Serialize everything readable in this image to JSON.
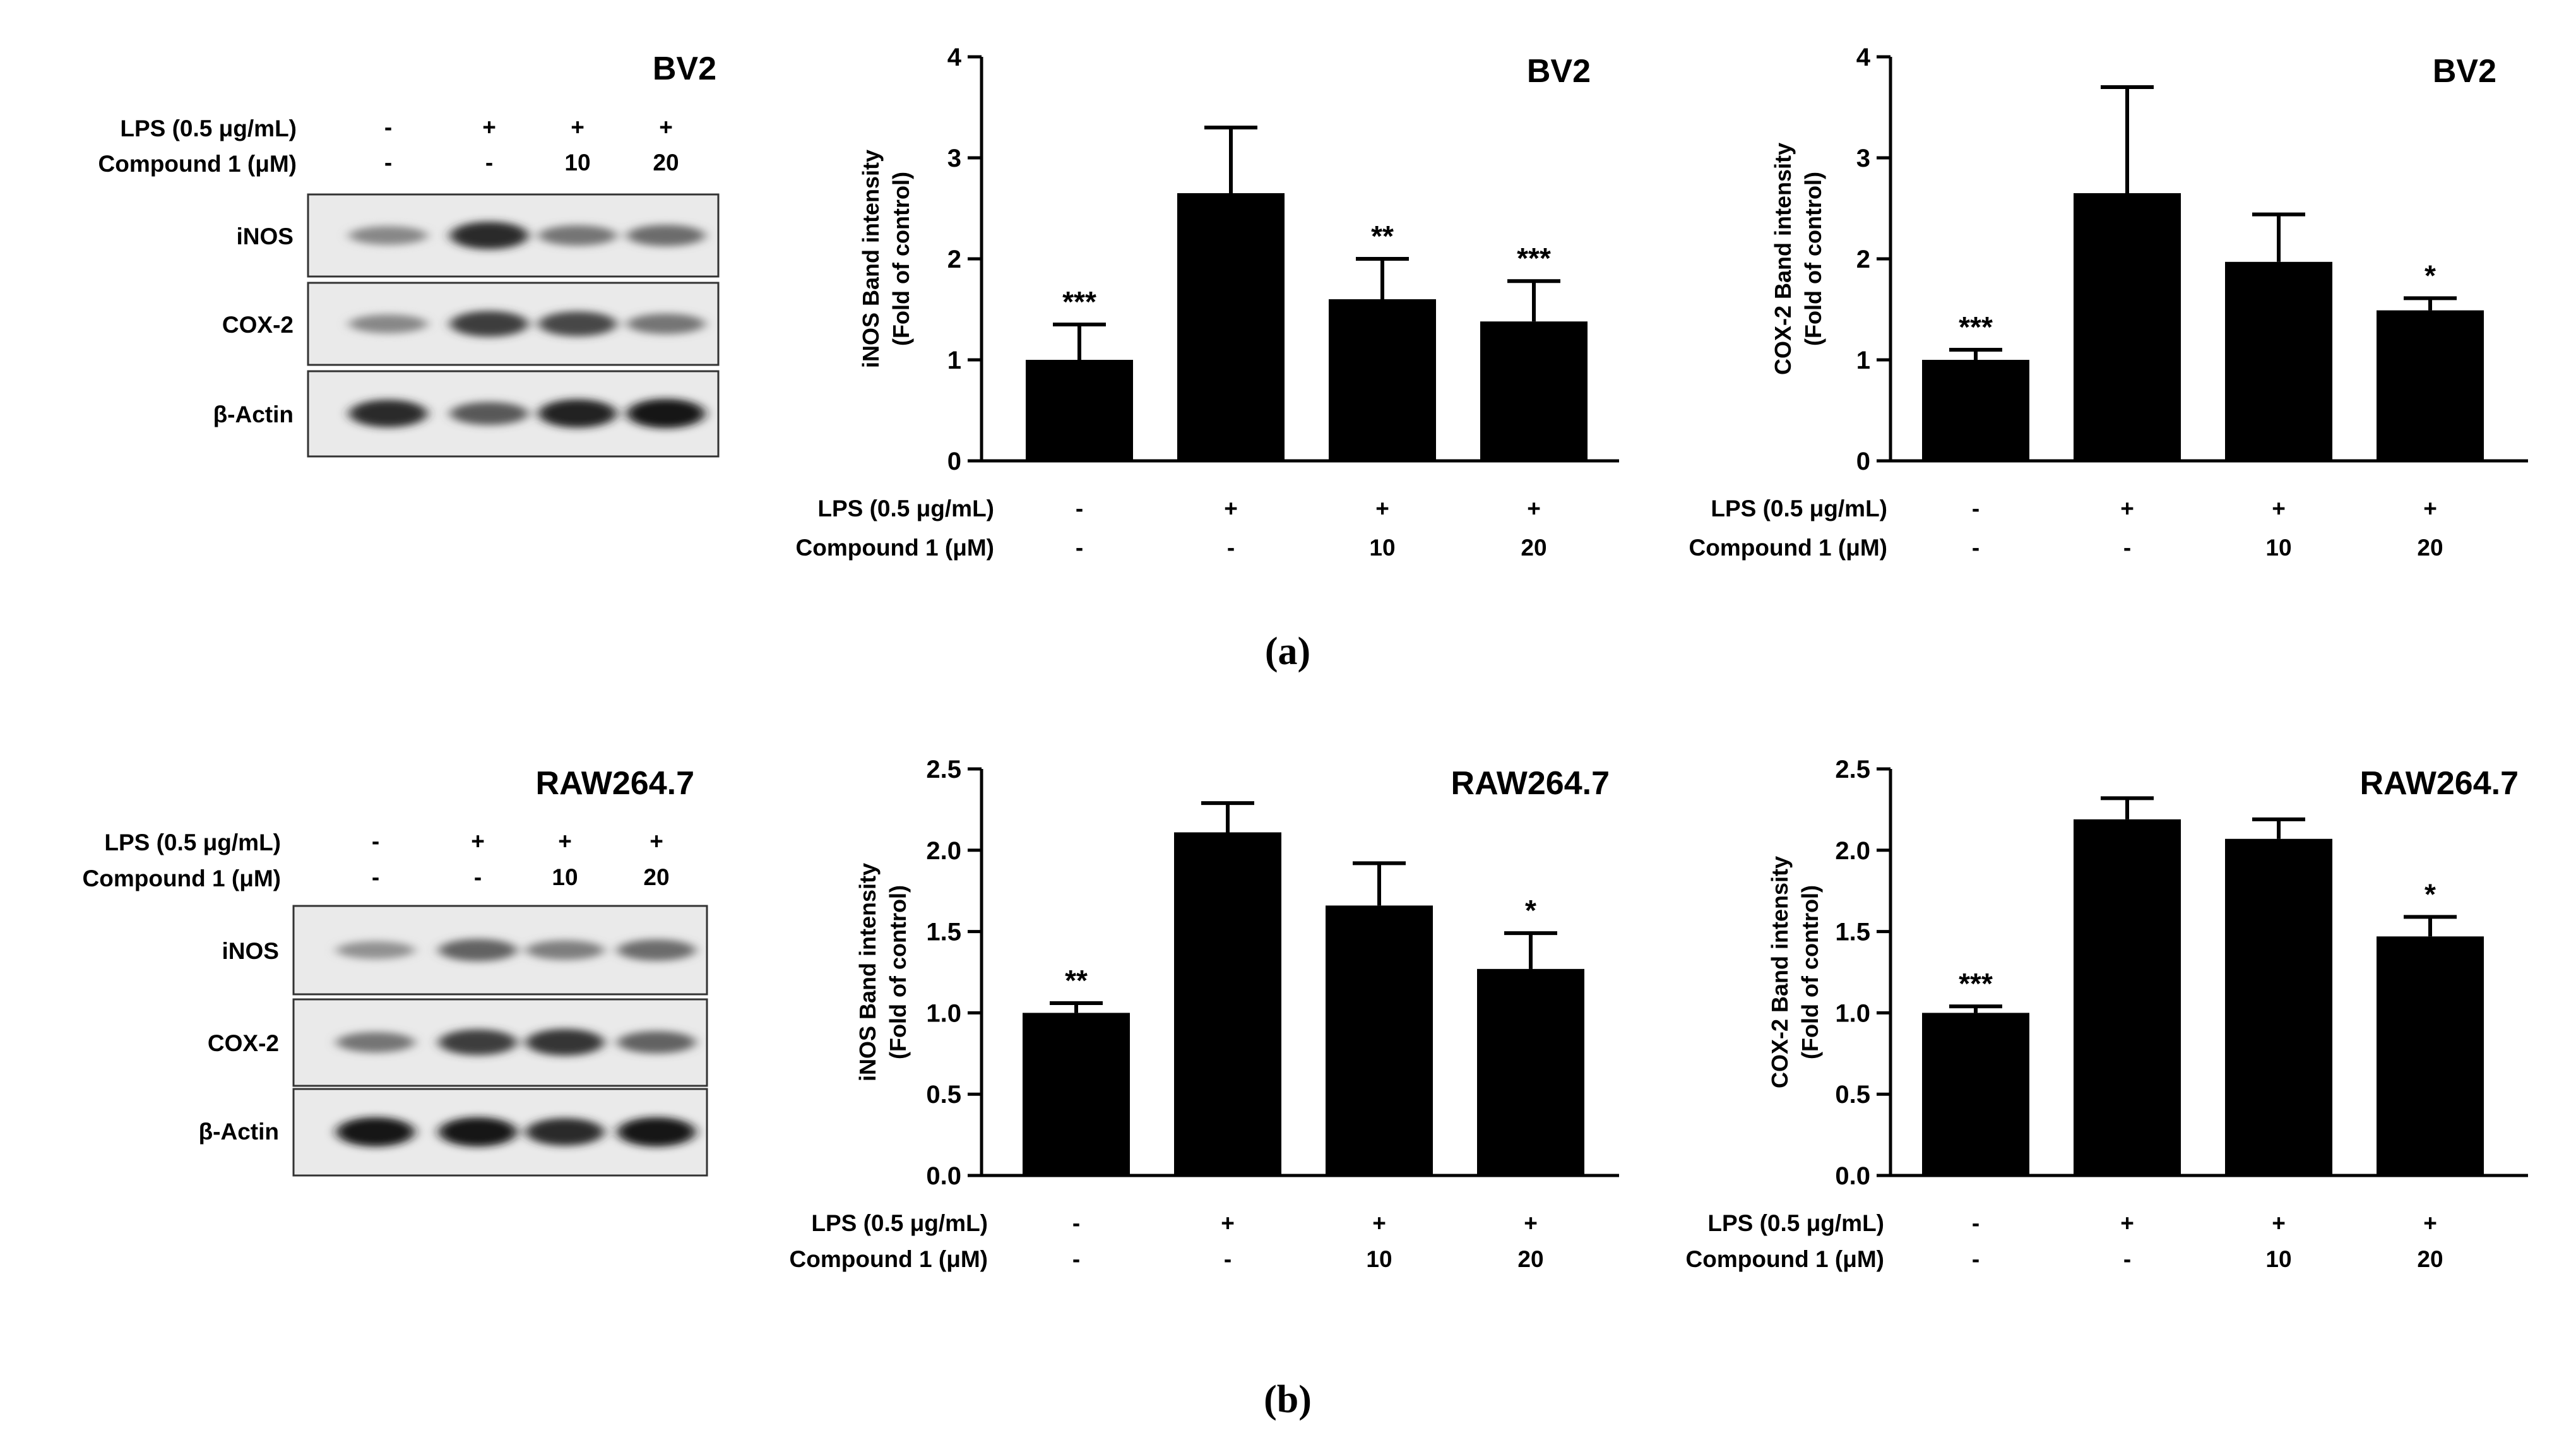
{
  "panels": [
    {
      "caption": "(a)",
      "cell_line": "BV2",
      "blot": {
        "title": "BV2",
        "row_labels": [
          "LPS (0.5 μg/mL)",
          "Compound 1 (μM)"
        ],
        "lanes": [
          {
            "lps": "-",
            "compound": "-"
          },
          {
            "lps": "+",
            "compound": "-"
          },
          {
            "lps": "+",
            "compound": "10"
          },
          {
            "lps": "+",
            "compound": "20"
          }
        ],
        "bands": [
          {
            "label": "iNOS",
            "intensity": [
              0.35,
              0.85,
              0.45,
              0.5
            ]
          },
          {
            "label": "COX-2",
            "intensity": [
              0.35,
              0.75,
              0.7,
              0.45
            ]
          },
          {
            "label": "β-Actin",
            "intensity": [
              0.85,
              0.6,
              0.9,
              0.95
            ]
          }
        ]
      }
    },
    {
      "caption": "(b)",
      "cell_line": "RAW264.7",
      "blot": {
        "title": "RAW264.7",
        "row_labels": [
          "LPS (0.5 μg/mL)",
          "Compound 1 (μM)"
        ],
        "lanes": [
          {
            "lps": "-",
            "compound": "-"
          },
          {
            "lps": "+",
            "compound": "-"
          },
          {
            "lps": "+",
            "compound": "10"
          },
          {
            "lps": "+",
            "compound": "20"
          }
        ],
        "bands": [
          {
            "label": "iNOS",
            "intensity": [
              0.3,
              0.55,
              0.4,
              0.5
            ]
          },
          {
            "label": "COX-2",
            "intensity": [
              0.45,
              0.75,
              0.8,
              0.55
            ]
          },
          {
            "label": "β-Actin",
            "intensity": [
              0.95,
              0.95,
              0.85,
              0.95
            ]
          }
        ]
      }
    }
  ],
  "chart_data": [
    {
      "type": "bar",
      "title": "BV2",
      "ylabel": [
        "iNOS Band intensity",
        "(Fold of control)"
      ],
      "ylim": [
        0,
        4
      ],
      "yticks": [
        0,
        1,
        2,
        3,
        4
      ],
      "ytick_labels": [
        "0",
        "1",
        "2",
        "3",
        "4"
      ],
      "values": [
        1.0,
        2.65,
        1.6,
        1.38
      ],
      "errors": [
        0.35,
        0.65,
        0.4,
        0.4
      ],
      "significance": [
        "***",
        "",
        "**",
        "***"
      ],
      "condition_labels": [
        "LPS (0.5 μg/mL)",
        "Compound 1 (μM)"
      ],
      "conditions": [
        [
          "-",
          "+",
          "+",
          "+"
        ],
        [
          "-",
          "-",
          "10",
          "20"
        ]
      ]
    },
    {
      "type": "bar",
      "title": "BV2",
      "ylabel": [
        "COX-2 Band intensity",
        "(Fold of control)"
      ],
      "ylim": [
        0,
        4
      ],
      "yticks": [
        0,
        1,
        2,
        3,
        4
      ],
      "ytick_labels": [
        "0",
        "1",
        "2",
        "3",
        "4"
      ],
      "values": [
        1.0,
        2.65,
        1.97,
        1.49
      ],
      "errors": [
        0.1,
        1.05,
        0.47,
        0.12
      ],
      "significance": [
        "***",
        "",
        "",
        "*"
      ],
      "condition_labels": [
        "LPS (0.5 μg/mL)",
        "Compound 1 (μM)"
      ],
      "conditions": [
        [
          "-",
          "+",
          "+",
          "+"
        ],
        [
          "-",
          "-",
          "10",
          "20"
        ]
      ]
    },
    {
      "type": "bar",
      "title": "RAW264.7",
      "ylabel": [
        "iNOS Band intensity",
        "(Fold of control)"
      ],
      "ylim": [
        0,
        2.5
      ],
      "yticks": [
        0,
        0.5,
        1.0,
        1.5,
        2.0,
        2.5
      ],
      "ytick_labels": [
        "0.0",
        "0.5",
        "1.0",
        "1.5",
        "2.0",
        "2.5"
      ],
      "values": [
        1.0,
        2.11,
        1.66,
        1.27
      ],
      "errors": [
        0.06,
        0.18,
        0.26,
        0.22
      ],
      "significance": [
        "**",
        "",
        "",
        "*"
      ],
      "condition_labels": [
        "LPS (0.5 μg/mL)",
        "Compound 1 (μM)"
      ],
      "conditions": [
        [
          "-",
          "+",
          "+",
          "+"
        ],
        [
          "-",
          "-",
          "10",
          "20"
        ]
      ]
    },
    {
      "type": "bar",
      "title": "RAW264.7",
      "ylabel": [
        "COX-2 Band intensity",
        "(Fold of control)"
      ],
      "ylim": [
        0,
        2.5
      ],
      "yticks": [
        0,
        0.5,
        1.0,
        1.5,
        2.0,
        2.5
      ],
      "ytick_labels": [
        "0.0",
        "0.5",
        "1.0",
        "1.5",
        "2.0",
        "2.5"
      ],
      "values": [
        1.0,
        2.19,
        2.07,
        1.47
      ],
      "errors": [
        0.04,
        0.13,
        0.12,
        0.12
      ],
      "significance": [
        "***",
        "",
        "",
        "*"
      ],
      "condition_labels": [
        "LPS (0.5 μg/mL)",
        "Compound 1 (μM)"
      ],
      "conditions": [
        [
          "-",
          "+",
          "+",
          "+"
        ],
        [
          "-",
          "-",
          "10",
          "20"
        ]
      ]
    }
  ]
}
